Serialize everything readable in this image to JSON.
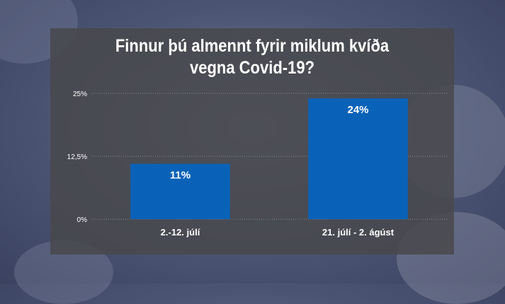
{
  "chart_data": {
    "type": "bar",
    "title_line1": "Finnur þú almennt fyrir miklum kvíða",
    "title_line2": "vegna Covid-19?",
    "categories": [
      "2.-12. júlí",
      "21. júlí - 2. ágúst"
    ],
    "values": [
      11,
      24
    ],
    "value_labels": [
      "11%",
      "24%"
    ],
    "yticks": [
      {
        "value": 0,
        "label": "0%"
      },
      {
        "value": 12.5,
        "label": "12,5%"
      },
      {
        "value": 25,
        "label": "25%"
      }
    ],
    "ylim": [
      0,
      25
    ],
    "grid": true,
    "bar_color": "#0a62b8",
    "grid_color": "#8a8a8a"
  }
}
